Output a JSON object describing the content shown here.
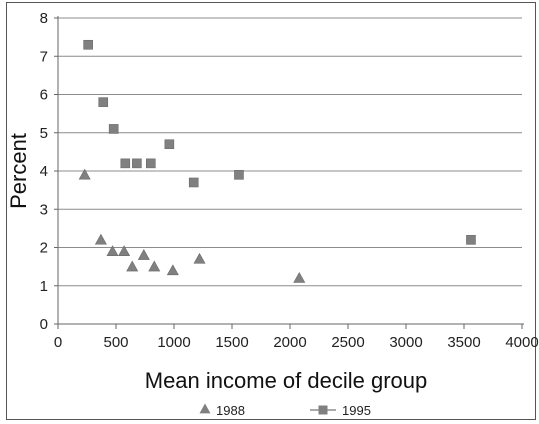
{
  "chart_data": {
    "type": "scatter",
    "title": "",
    "xlabel": "Mean income of decile group",
    "ylabel": "Percent",
    "xlim": [
      0,
      4000
    ],
    "ylim": [
      0,
      8
    ],
    "xticks": [
      0,
      500,
      1000,
      1500,
      2000,
      2500,
      3000,
      3500,
      4000
    ],
    "yticks": [
      0,
      1,
      2,
      3,
      4,
      5,
      6,
      7,
      8
    ],
    "grid": "horizontal",
    "legend_position": "bottom",
    "series": [
      {
        "name": "1988",
        "marker": "triangle",
        "color": "#808080",
        "points": [
          {
            "x": 230,
            "y": 3.9
          },
          {
            "x": 370,
            "y": 2.2
          },
          {
            "x": 470,
            "y": 1.9
          },
          {
            "x": 570,
            "y": 1.9
          },
          {
            "x": 640,
            "y": 1.5
          },
          {
            "x": 740,
            "y": 1.8
          },
          {
            "x": 830,
            "y": 1.5
          },
          {
            "x": 990,
            "y": 1.4
          },
          {
            "x": 1220,
            "y": 1.7
          },
          {
            "x": 2080,
            "y": 1.2
          }
        ]
      },
      {
        "name": "1995",
        "marker": "square",
        "color": "#808080",
        "points": [
          {
            "x": 260,
            "y": 7.3
          },
          {
            "x": 390,
            "y": 5.8
          },
          {
            "x": 480,
            "y": 5.1
          },
          {
            "x": 580,
            "y": 4.2
          },
          {
            "x": 680,
            "y": 4.2
          },
          {
            "x": 800,
            "y": 4.2
          },
          {
            "x": 960,
            "y": 4.7
          },
          {
            "x": 1170,
            "y": 3.7
          },
          {
            "x": 1560,
            "y": 3.9
          },
          {
            "x": 3560,
            "y": 2.2
          }
        ]
      }
    ]
  }
}
